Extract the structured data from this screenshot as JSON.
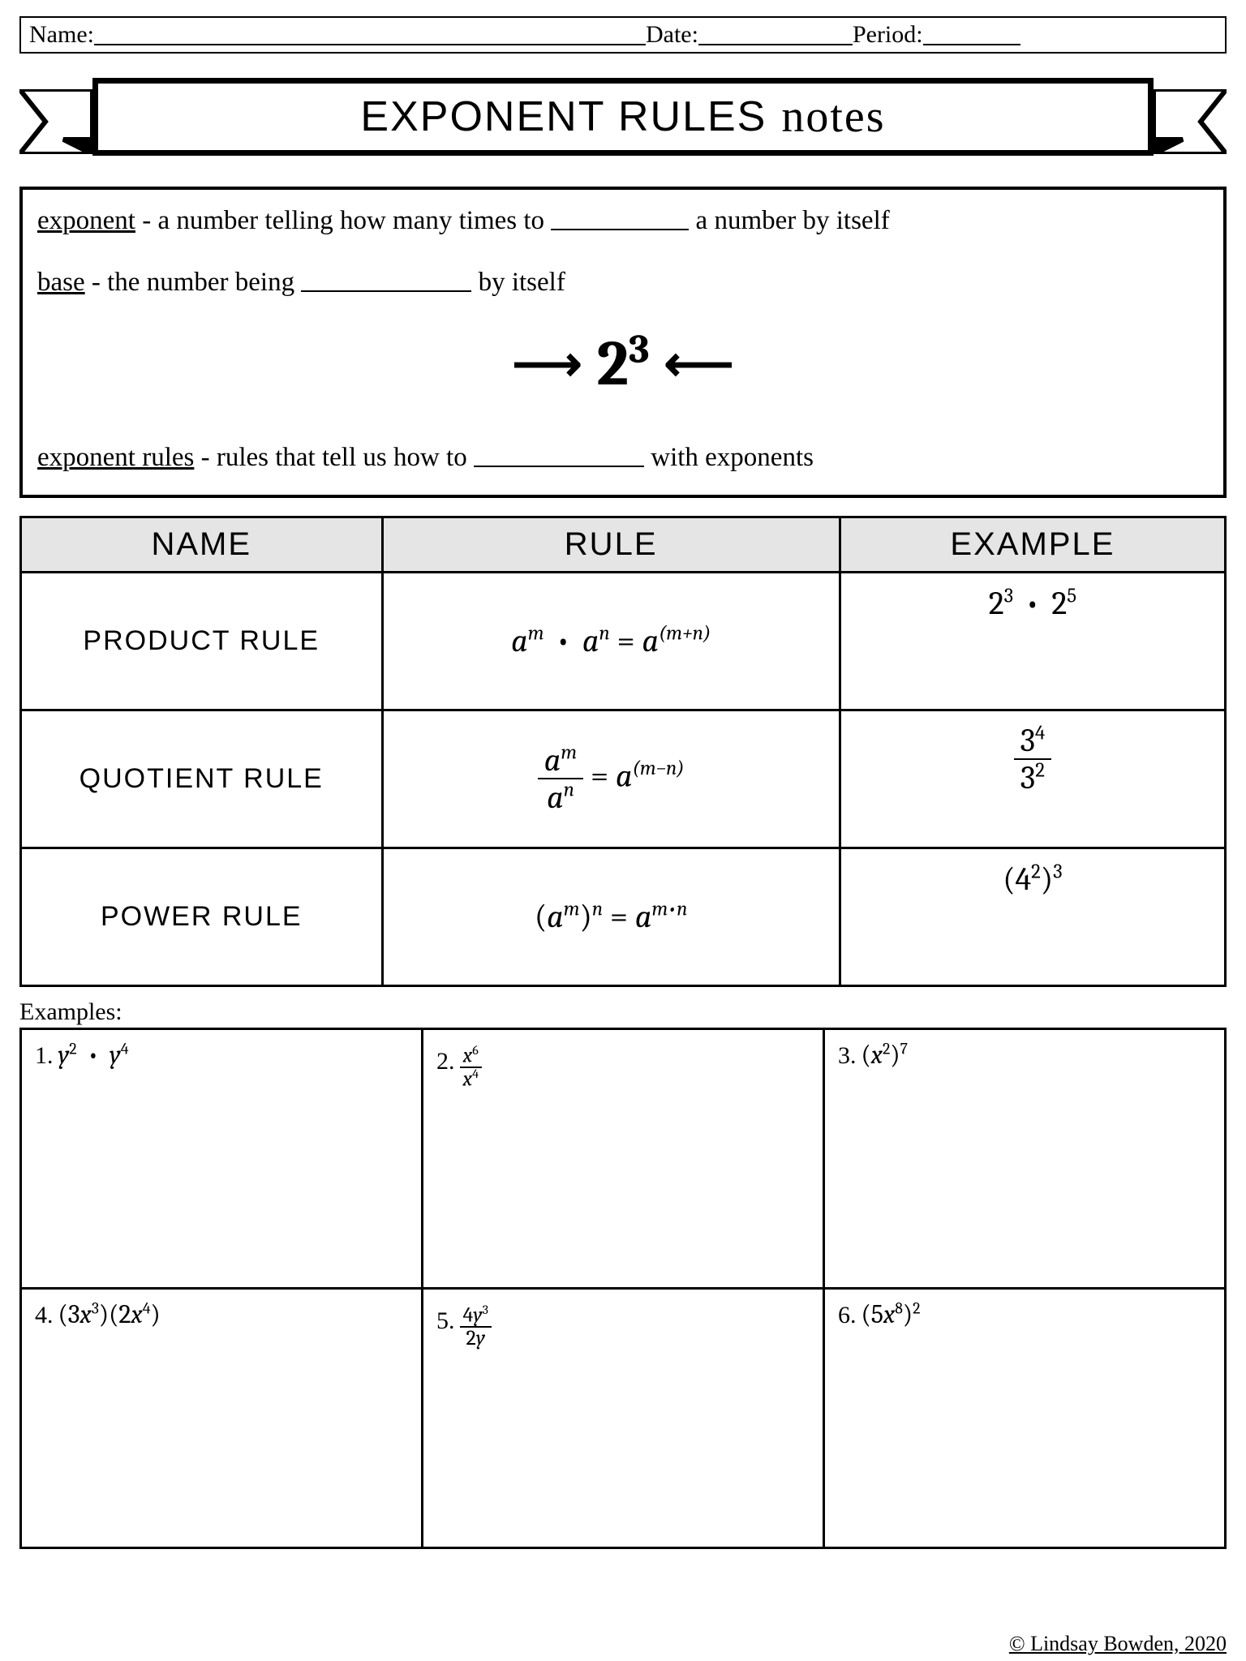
{
  "header": {
    "name_label": "Name:",
    "date_label": "Date:",
    "period_label": "Period:",
    "name_line_width": 680,
    "date_line_width": 190,
    "period_line_width": 120
  },
  "title": {
    "main": "EXPONENT RULES",
    "script": "notes"
  },
  "definitions": {
    "exponent_term": "exponent",
    "exponent_text_before": " - a number telling how many times to ",
    "exponent_blank_width": 170,
    "exponent_text_after": " a number by itself",
    "base_term": "base",
    "base_text_before": " - the number being ",
    "base_blank_width": 210,
    "base_text_after": " by itself",
    "big_base": "2",
    "big_exp": "3",
    "rules_term": "exponent rules",
    "rules_text_before": " - rules that tell us how to ",
    "rules_blank_width": 210,
    "rules_text_after": " with exponents"
  },
  "rules_table": {
    "headers": {
      "name": "NAME",
      "rule": "RULE",
      "example": "EXAMPLE"
    },
    "rows": [
      {
        "name": "PRODUCT RULE",
        "rule_html": "a<sup>m</sup> <span class='dot'>•</span> a<sup>n</sup> <span class='up'>=</span> a<sup>(m+n)</sup>",
        "example_html": "<span class='up'>2</span><sup><span class='up'>3</span></sup> <span class='dot'>•</span> <span class='up'>2</span><sup><span class='up'>5</span></sup>"
      },
      {
        "name": "QUOTIENT RULE",
        "rule_html": "<span class='frac'><span class='num'>a<sup>m</sup></span><span class='den'>a<sup>n</sup></span></span> <span class='up'>=</span> a<sup>(m−n)</sup>",
        "example_html": "<span class='frac'><span class='num'><span class='up'>3</span><sup><span class='up'>4</span></sup></span><span class='den'><span class='up'>3</span><sup><span class='up'>2</span></sup></span></span>"
      },
      {
        "name": "POWER RULE",
        "rule_html": "<span class='up'>(</span>a<sup>m</sup><span class='up'>)</span><sup>n</sup> <span class='up'>=</span> a<sup>m•n</sup>",
        "example_html": "<span class='up'>(4</span><sup><span class='up'>2</span></sup><span class='up'>)</span><sup><span class='up'>3</span></sup>"
      }
    ]
  },
  "examples": {
    "label": "Examples:",
    "cells": [
      {
        "n": "1.",
        "html": "y<sup><span class='up'>2</span></sup> <span class='dot'>•</span> y<sup><span class='up'>4</span></sup>"
      },
      {
        "n": "2.",
        "html": "<span class='sfrac'><span class='num'>x<sup><span class=\"up\">6</span></sup></span><span class='den'>x<sup><span class=\"up\">4</span></sup></span></span>"
      },
      {
        "n": "3.",
        "html": "<span class='up'>(</span>x<sup><span class='up'>2</span></sup><span class='up'>)</span><sup><span class='up'>7</span></sup>"
      },
      {
        "n": "4.",
        "html": "<span class='up'>(3</span>x<sup><span class='up'>3</span></sup><span class='up'>)(2</span>x<sup><span class='up'>4</span></sup><span class='up'>)</span>"
      },
      {
        "n": "5.",
        "html": "<span class='sfrac'><span class='num'><span class=\"up\">4</span>y<sup><span class=\"up\">3</span></sup></span><span class='den'><span class=\"up\">2</span>y</span></span>"
      },
      {
        "n": "6.",
        "html": "<span class='up'>(5</span>x<sup><span class='up'>8</span></sup><span class='up'>)</span><sup><span class='up'>2</span></sup>"
      }
    ]
  },
  "copyright": "© Lindsay Bowden, 2020"
}
